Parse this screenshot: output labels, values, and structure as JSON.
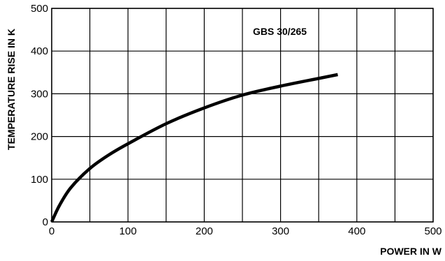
{
  "chart_data": {
    "type": "line",
    "xlabel": "POWER IN W",
    "ylabel": "TEMPERATURE RISE IN K",
    "xlim": [
      0,
      500
    ],
    "ylim": [
      0,
      500
    ],
    "x_ticks": [
      "0",
      "100",
      "200",
      "300",
      "400",
      "500"
    ],
    "y_ticks": [
      "0",
      "100",
      "200",
      "300",
      "400",
      "500"
    ],
    "x_gridlines": [
      0,
      50,
      100,
      150,
      200,
      250,
      300,
      350,
      400,
      450,
      500
    ],
    "y_gridlines": [
      0,
      100,
      200,
      300,
      400,
      500
    ],
    "grid": true,
    "annotation": "GBS 30/265",
    "series": [
      {
        "x": [
          0,
          10,
          25,
          50,
          75,
          100,
          150,
          200,
          250,
          300,
          350,
          375
        ],
        "y": [
          0,
          38,
          80,
          125,
          157,
          183,
          230,
          267,
          297,
          318,
          336,
          345
        ],
        "color": "#000000"
      }
    ]
  }
}
